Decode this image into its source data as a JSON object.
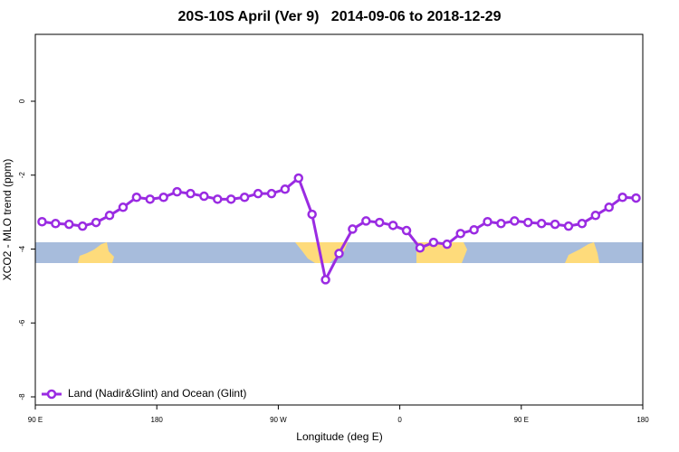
{
  "chart_data": {
    "type": "line",
    "title": "20S-10S April (Ver 9)   2014-09-06 to 2018-12-29",
    "xlabel": "Longitude (deg E)",
    "ylabel": "XCO2 - MLO trend (ppm)",
    "x": [
      95,
      105,
      115,
      125,
      135,
      145,
      155,
      165,
      175,
      185,
      195,
      205,
      215,
      225,
      235,
      245,
      255,
      265,
      275,
      285,
      295,
      305,
      315,
      325,
      335,
      345,
      355,
      365,
      375,
      385,
      395,
      405,
      415,
      425,
      435,
      445,
      455,
      465,
      475,
      485,
      495,
      505,
      515,
      525,
      535
    ],
    "series": [
      {
        "name": "Land (Nadir&Glint) and Ocean (Glint)",
        "color": "#9a2be2",
        "values": [
          -3.26,
          -3.31,
          -3.33,
          -3.38,
          -3.28,
          -3.09,
          -2.87,
          -2.6,
          -2.65,
          -2.6,
          -2.45,
          -2.5,
          -2.57,
          -2.65,
          -2.65,
          -2.6,
          -2.5,
          -2.5,
          -2.38,
          -2.08,
          -3.06,
          -4.83,
          -4.12,
          -3.46,
          -3.24,
          -3.28,
          -3.36,
          -3.5,
          -3.97,
          -3.82,
          -3.87,
          -3.58,
          -3.48,
          -3.26,
          -3.31,
          -3.24,
          -3.28,
          -3.31,
          -3.33,
          -3.38,
          -3.31,
          -3.09,
          -2.87,
          -2.6,
          -2.62
        ]
      }
    ],
    "xlim": [
      90,
      540
    ],
    "xticks": [
      {
        "value": 90,
        "label": "90 E"
      },
      180,
      {
        "value": 270,
        "label": "90 W"
      },
      {
        "value": 360,
        "label": "0"
      },
      {
        "value": 450,
        "label": "90 E"
      },
      {
        "value": 540,
        "label": "180"
      }
    ],
    "ylim": [
      -8.22,
      1.81
    ],
    "yticks": [
      0,
      -2,
      -4,
      -6,
      -8
    ],
    "legend": "bottom-left"
  }
}
